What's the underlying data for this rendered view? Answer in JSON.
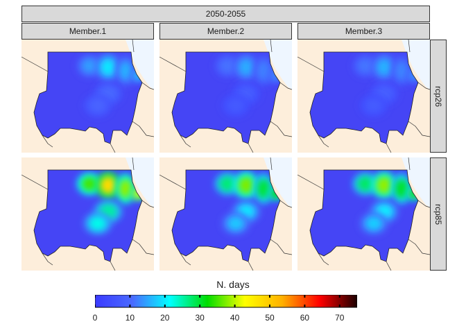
{
  "facets": {
    "top": "2050-2055",
    "columns": [
      "Member.1",
      "Member.2",
      "Member.3"
    ],
    "rows": [
      "rcp26",
      "rcp85"
    ]
  },
  "legend": {
    "title": "N. days",
    "min": 0,
    "max": 75,
    "ticks": [
      "0",
      "10",
      "20",
      "30",
      "40",
      "50",
      "60",
      "70"
    ],
    "colors": [
      "#3a3aff",
      "#4a6aff",
      "#00ffff",
      "#00dd00",
      "#ffff00",
      "#ffb000",
      "#ff0000",
      "#1a0000"
    ]
  },
  "map": {
    "region": "Sudan",
    "land_color": "#fdeedb",
    "sea_color": "#eef6ff",
    "base_color": "#4545f5",
    "intensity_by_row": [
      0.35,
      0.85
    ],
    "intensity_by_member": [
      1.0,
      0.78,
      0.8
    ],
    "hotspots": [
      {
        "name": "north-west",
        "level": 0.55
      },
      {
        "name": "north-centre",
        "level": 0.75
      },
      {
        "name": "nile-east",
        "level": 0.6
      },
      {
        "name": "red-sea-coast",
        "level": 0.65
      },
      {
        "name": "central",
        "level": 0.4
      },
      {
        "name": "south-east",
        "level": 0.35
      }
    ]
  }
}
